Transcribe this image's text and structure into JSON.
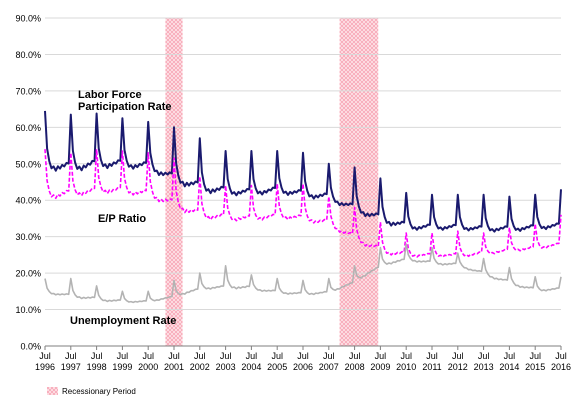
{
  "chart_data": {
    "type": "line",
    "x_start": "1996-07",
    "x_end": "2016-07",
    "ylim": [
      0,
      90
    ],
    "y_ticks": [
      "0.0%",
      "10.0%",
      "20.0%",
      "30.0%",
      "40.0%",
      "50.0%",
      "60.0%",
      "70.0%",
      "80.0%",
      "90.0%"
    ],
    "x_tick_labels": [
      {
        "month": "Jul",
        "year": "1996"
      },
      {
        "month": "Jul",
        "year": "1997"
      },
      {
        "month": "Jul",
        "year": "1998"
      },
      {
        "month": "Jul",
        "year": "1999"
      },
      {
        "month": "Jul",
        "year": "2000"
      },
      {
        "month": "Jul",
        "year": "2001"
      },
      {
        "month": "Jul",
        "year": "2002"
      },
      {
        "month": "Jul",
        "year": "2003"
      },
      {
        "month": "Jul",
        "year": "2004"
      },
      {
        "month": "Jul",
        "year": "2005"
      },
      {
        "month": "Jul",
        "year": "2006"
      },
      {
        "month": "Jul",
        "year": "2007"
      },
      {
        "month": "Jul",
        "year": "2008"
      },
      {
        "month": "Jul",
        "year": "2009"
      },
      {
        "month": "Jul",
        "year": "2010"
      },
      {
        "month": "Jul",
        "year": "2011"
      },
      {
        "month": "Jul",
        "year": "2012"
      },
      {
        "month": "Jul",
        "year": "2013"
      },
      {
        "month": "Jul",
        "year": "2014"
      },
      {
        "month": "Jul",
        "year": "2015"
      },
      {
        "month": "Jul",
        "year": "2016"
      }
    ],
    "recessions": [
      {
        "start": "2001-03",
        "end": "2001-11"
      },
      {
        "start": "2007-12",
        "end": "2009-06"
      }
    ],
    "legend": {
      "label": "Recessionary Period",
      "position": "bottom-left"
    },
    "grid": true,
    "annotations": [
      {
        "id": "lfpr",
        "text_lines": [
          "Labor Force",
          "Participation Rate"
        ]
      },
      {
        "id": "ep",
        "text_lines": [
          "E/P Ratio"
        ]
      },
      {
        "id": "ur",
        "text_lines": [
          "Unemployment  Rate"
        ]
      }
    ],
    "series": [
      {
        "id": "lfpr",
        "color": "#1a1a6e",
        "style": "solid",
        "width": 2,
        "peaks": [
          {
            "year": 1996,
            "peak": 64.5,
            "base": 48.5
          },
          {
            "year": 1997,
            "peak": 63.5,
            "base": 48.0
          },
          {
            "year": 1998,
            "peak": 63.8,
            "base": 49.0
          },
          {
            "year": 1999,
            "peak": 62.5,
            "base": 49.0
          },
          {
            "year": 2000,
            "peak": 61.5,
            "base": 48.5
          },
          {
            "year": 2001,
            "peak": 60.0,
            "base": 45.0
          },
          {
            "year": 2002,
            "peak": 57.0,
            "base": 42.5
          },
          {
            "year": 2003,
            "peak": 53.5,
            "base": 41.5
          },
          {
            "year": 2004,
            "peak": 53.5,
            "base": 41.5
          },
          {
            "year": 2005,
            "peak": 53.5,
            "base": 42.0
          },
          {
            "year": 2006,
            "peak": 53.0,
            "base": 41.0
          },
          {
            "year": 2007,
            "peak": 50.0,
            "base": 40.0
          },
          {
            "year": 2008,
            "peak": 49.0,
            "base": 37.0
          },
          {
            "year": 2009,
            "peak": 46.0,
            "base": 34.0
          },
          {
            "year": 2010,
            "peak": 42.0,
            "base": 32.0
          },
          {
            "year": 2011,
            "peak": 41.5,
            "base": 32.0
          },
          {
            "year": 2012,
            "peak": 41.5,
            "base": 32.0
          },
          {
            "year": 2013,
            "peak": 41.5,
            "base": 31.5
          },
          {
            "year": 2014,
            "peak": 41.0,
            "base": 31.5
          },
          {
            "year": 2015,
            "peak": 41.5,
            "base": 32.0
          },
          {
            "year": 2016,
            "peak": 43.0,
            "base": 32.5
          }
        ]
      },
      {
        "id": "ep",
        "color": "#ff00ff",
        "style": "dashed",
        "width": 1.6,
        "peaks": [
          {
            "year": 1996,
            "peak": 54.0,
            "base": 40.5
          },
          {
            "year": 1997,
            "peak": 53.0,
            "base": 41.0
          },
          {
            "year": 1998,
            "peak": 54.0,
            "base": 42.0
          },
          {
            "year": 1999,
            "peak": 53.5,
            "base": 42.0
          },
          {
            "year": 2000,
            "peak": 53.0,
            "base": 41.0
          },
          {
            "year": 2001,
            "peak": 51.5,
            "base": 38.0
          },
          {
            "year": 2002,
            "peak": 46.5,
            "base": 35.0
          },
          {
            "year": 2003,
            "peak": 44.0,
            "base": 34.5
          },
          {
            "year": 2004,
            "peak": 44.0,
            "base": 34.5
          },
          {
            "year": 2005,
            "peak": 44.5,
            "base": 35.0
          },
          {
            "year": 2006,
            "peak": 44.5,
            "base": 34.5
          },
          {
            "year": 2007,
            "peak": 41.0,
            "base": 33.0
          },
          {
            "year": 2008,
            "peak": 38.0,
            "base": 29.0
          },
          {
            "year": 2009,
            "peak": 34.0,
            "base": 25.5
          },
          {
            "year": 2010,
            "peak": 31.0,
            "base": 24.5
          },
          {
            "year": 2011,
            "peak": 31.0,
            "base": 24.5
          },
          {
            "year": 2012,
            "peak": 31.5,
            "base": 24.5
          },
          {
            "year": 2013,
            "peak": 31.0,
            "base": 25.0
          },
          {
            "year": 2014,
            "peak": 32.5,
            "base": 26.0
          },
          {
            "year": 2015,
            "peak": 33.5,
            "base": 26.5
          },
          {
            "year": 2016,
            "peak": 36.0,
            "base": 27.5
          }
        ]
      },
      {
        "id": "ur",
        "color": "#b3b3b3",
        "style": "solid",
        "width": 1.6,
        "peaks": [
          {
            "year": 1996,
            "peak": 18.5,
            "base": 14.5
          },
          {
            "year": 1997,
            "peak": 18.5,
            "base": 13.5
          },
          {
            "year": 1998,
            "peak": 16.5,
            "base": 12.5
          },
          {
            "year": 1999,
            "peak": 15.0,
            "base": 12.0
          },
          {
            "year": 2000,
            "peak": 15.0,
            "base": 12.0
          },
          {
            "year": 2001,
            "peak": 18.0,
            "base": 13.5
          },
          {
            "year": 2002,
            "peak": 20.0,
            "base": 15.5
          },
          {
            "year": 2003,
            "peak": 22.0,
            "base": 16.0
          },
          {
            "year": 2004,
            "peak": 19.5,
            "base": 15.5
          },
          {
            "year": 2005,
            "peak": 18.5,
            "base": 14.5
          },
          {
            "year": 2006,
            "peak": 18.0,
            "base": 14.0
          },
          {
            "year": 2007,
            "peak": 18.5,
            "base": 14.5
          },
          {
            "year": 2008,
            "peak": 22.0,
            "base": 17.5
          },
          {
            "year": 2009,
            "peak": 27.0,
            "base": 22.0
          },
          {
            "year": 2010,
            "peak": 28.0,
            "base": 23.5
          },
          {
            "year": 2011,
            "peak": 27.0,
            "base": 22.5
          },
          {
            "year": 2012,
            "peak": 25.5,
            "base": 22.0
          },
          {
            "year": 2013,
            "peak": 24.0,
            "base": 19.5
          },
          {
            "year": 2014,
            "peak": 21.5,
            "base": 17.0
          },
          {
            "year": 2015,
            "peak": 19.0,
            "base": 15.0
          },
          {
            "year": 2016,
            "peak": 19.0,
            "base": 15.5
          }
        ]
      }
    ]
  }
}
